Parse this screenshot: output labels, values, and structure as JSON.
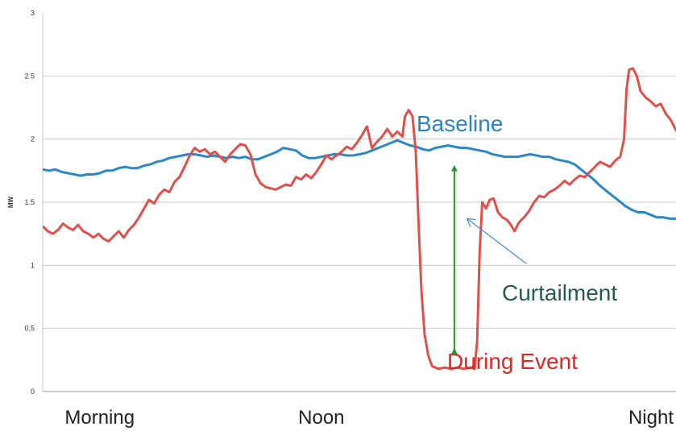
{
  "chart_data": {
    "type": "line",
    "ylabel": "MW",
    "ylim": [
      0,
      3
    ],
    "y_ticks": [
      0,
      0.5,
      1,
      1.5,
      2,
      2.5,
      3
    ],
    "grid": "horizontal",
    "xlim": [
      0,
      100
    ],
    "x_categories": [
      {
        "label": "Morning",
        "x": 9
      },
      {
        "label": "Noon",
        "x": 44
      },
      {
        "label": "Night",
        "x": 99
      }
    ],
    "series": [
      {
        "name": "Baseline",
        "color": "#2a88c8",
        "points": [
          [
            0,
            1.76
          ],
          [
            1,
            1.75
          ],
          [
            2,
            1.76
          ],
          [
            3,
            1.74
          ],
          [
            4,
            1.73
          ],
          [
            5,
            1.72
          ],
          [
            6,
            1.71
          ],
          [
            7,
            1.72
          ],
          [
            8,
            1.72
          ],
          [
            9,
            1.73
          ],
          [
            10,
            1.75
          ],
          [
            11,
            1.75
          ],
          [
            12,
            1.77
          ],
          [
            13,
            1.78
          ],
          [
            14,
            1.77
          ],
          [
            15,
            1.77
          ],
          [
            16,
            1.79
          ],
          [
            17,
            1.8
          ],
          [
            18,
            1.82
          ],
          [
            19,
            1.83
          ],
          [
            20,
            1.85
          ],
          [
            21,
            1.86
          ],
          [
            22,
            1.87
          ],
          [
            23,
            1.88
          ],
          [
            24,
            1.88
          ],
          [
            25,
            1.87
          ],
          [
            26,
            1.86
          ],
          [
            27,
            1.87
          ],
          [
            28,
            1.86
          ],
          [
            29,
            1.85
          ],
          [
            30,
            1.86
          ],
          [
            31,
            1.85
          ],
          [
            32,
            1.86
          ],
          [
            33,
            1.84
          ],
          [
            34,
            1.84
          ],
          [
            35,
            1.86
          ],
          [
            36,
            1.88
          ],
          [
            37,
            1.9
          ],
          [
            38,
            1.93
          ],
          [
            39,
            1.92
          ],
          [
            40,
            1.91
          ],
          [
            41,
            1.87
          ],
          [
            42,
            1.85
          ],
          [
            43,
            1.85
          ],
          [
            44,
            1.86
          ],
          [
            45,
            1.87
          ],
          [
            46,
            1.88
          ],
          [
            47,
            1.88
          ],
          [
            48,
            1.87
          ],
          [
            49,
            1.87
          ],
          [
            50,
            1.88
          ],
          [
            51,
            1.89
          ],
          [
            52,
            1.91
          ],
          [
            53,
            1.93
          ],
          [
            54,
            1.95
          ],
          [
            55,
            1.97
          ],
          [
            56,
            1.99
          ],
          [
            57,
            1.97
          ],
          [
            58,
            1.95
          ],
          [
            59,
            1.94
          ],
          [
            60,
            1.92
          ],
          [
            61,
            1.91
          ],
          [
            62,
            1.93
          ],
          [
            63,
            1.94
          ],
          [
            64,
            1.95
          ],
          [
            65,
            1.94
          ],
          [
            66,
            1.93
          ],
          [
            67,
            1.93
          ],
          [
            68,
            1.92
          ],
          [
            69,
            1.91
          ],
          [
            70,
            1.9
          ],
          [
            71,
            1.88
          ],
          [
            72,
            1.87
          ],
          [
            73,
            1.86
          ],
          [
            74,
            1.86
          ],
          [
            75,
            1.86
          ],
          [
            76,
            1.87
          ],
          [
            77,
            1.88
          ],
          [
            78,
            1.87
          ],
          [
            79,
            1.86
          ],
          [
            80,
            1.86
          ],
          [
            81,
            1.84
          ],
          [
            82,
            1.83
          ],
          [
            83,
            1.82
          ],
          [
            84,
            1.8
          ],
          [
            85,
            1.76
          ],
          [
            86,
            1.72
          ],
          [
            87,
            1.68
          ],
          [
            88,
            1.63
          ],
          [
            89,
            1.59
          ],
          [
            90,
            1.55
          ],
          [
            91,
            1.51
          ],
          [
            92,
            1.47
          ],
          [
            93,
            1.44
          ],
          [
            94,
            1.42
          ],
          [
            95,
            1.42
          ],
          [
            96,
            1.4
          ],
          [
            97,
            1.38
          ],
          [
            98,
            1.38
          ],
          [
            99,
            1.37
          ],
          [
            100,
            1.37
          ]
        ]
      },
      {
        "name": "During Event",
        "color": "#e0504a",
        "points": [
          [
            0,
            1.31
          ],
          [
            0.8,
            1.27
          ],
          [
            1.6,
            1.25
          ],
          [
            2.4,
            1.28
          ],
          [
            3.2,
            1.33
          ],
          [
            4,
            1.3
          ],
          [
            4.8,
            1.28
          ],
          [
            5.6,
            1.32
          ],
          [
            6.4,
            1.27
          ],
          [
            7.2,
            1.25
          ],
          [
            8,
            1.22
          ],
          [
            8.8,
            1.25
          ],
          [
            9.6,
            1.21
          ],
          [
            10.4,
            1.19
          ],
          [
            11.2,
            1.23
          ],
          [
            12,
            1.27
          ],
          [
            12.8,
            1.22
          ],
          [
            13.6,
            1.28
          ],
          [
            14.4,
            1.32
          ],
          [
            15.2,
            1.38
          ],
          [
            16,
            1.45
          ],
          [
            16.8,
            1.52
          ],
          [
            17.6,
            1.49
          ],
          [
            18.4,
            1.56
          ],
          [
            19.2,
            1.6
          ],
          [
            20,
            1.58
          ],
          [
            20.8,
            1.66
          ],
          [
            21.6,
            1.7
          ],
          [
            22.4,
            1.78
          ],
          [
            23.2,
            1.87
          ],
          [
            24,
            1.93
          ],
          [
            24.8,
            1.9
          ],
          [
            25.6,
            1.92
          ],
          [
            26.4,
            1.88
          ],
          [
            27.2,
            1.9
          ],
          [
            28,
            1.86
          ],
          [
            28.8,
            1.82
          ],
          [
            29.6,
            1.88
          ],
          [
            30.4,
            1.92
          ],
          [
            31.2,
            1.96
          ],
          [
            32,
            1.95
          ],
          [
            32.8,
            1.88
          ],
          [
            33.6,
            1.72
          ],
          [
            34.4,
            1.65
          ],
          [
            35.2,
            1.62
          ],
          [
            36,
            1.61
          ],
          [
            36.8,
            1.6
          ],
          [
            37.6,
            1.62
          ],
          [
            38.4,
            1.64
          ],
          [
            39.2,
            1.63
          ],
          [
            40,
            1.7
          ],
          [
            40.8,
            1.68
          ],
          [
            41.6,
            1.72
          ],
          [
            42.4,
            1.69
          ],
          [
            43.2,
            1.74
          ],
          [
            44,
            1.8
          ],
          [
            44.8,
            1.87
          ],
          [
            45.6,
            1.84
          ],
          [
            46.4,
            1.87
          ],
          [
            47.2,
            1.9
          ],
          [
            48,
            1.94
          ],
          [
            48.8,
            1.92
          ],
          [
            49.6,
            1.97
          ],
          [
            50.4,
            2.03
          ],
          [
            51.2,
            2.1
          ],
          [
            52,
            1.93
          ],
          [
            52.8,
            1.98
          ],
          [
            53.6,
            2.02
          ],
          [
            54.4,
            2.08
          ],
          [
            55.2,
            2.02
          ],
          [
            56,
            2.06
          ],
          [
            56.8,
            2.02
          ],
          [
            57.2,
            2.18
          ],
          [
            57.8,
            2.23
          ],
          [
            58.4,
            2.18
          ],
          [
            58.9,
            1.9
          ],
          [
            59.3,
            1.4
          ],
          [
            59.8,
            0.8
          ],
          [
            60.3,
            0.45
          ],
          [
            60.9,
            0.28
          ],
          [
            61.5,
            0.2
          ],
          [
            62.5,
            0.18
          ],
          [
            63.5,
            0.19
          ],
          [
            64.5,
            0.18
          ],
          [
            65.5,
            0.19
          ],
          [
            66.5,
            0.18
          ],
          [
            67.5,
            0.19
          ],
          [
            68.2,
            0.18
          ],
          [
            68.6,
            0.4
          ],
          [
            69,
            1.1
          ],
          [
            69.4,
            1.5
          ],
          [
            70,
            1.45
          ],
          [
            70.6,
            1.52
          ],
          [
            71.2,
            1.53
          ],
          [
            71.9,
            1.42
          ],
          [
            72.6,
            1.38
          ],
          [
            73.3,
            1.36
          ],
          [
            73.8,
            1.33
          ],
          [
            74.5,
            1.27
          ],
          [
            75.2,
            1.34
          ],
          [
            76,
            1.38
          ],
          [
            76.8,
            1.43
          ],
          [
            77.6,
            1.5
          ],
          [
            78.4,
            1.55
          ],
          [
            79.2,
            1.54
          ],
          [
            80,
            1.58
          ],
          [
            80.8,
            1.6
          ],
          [
            81.6,
            1.63
          ],
          [
            82.4,
            1.67
          ],
          [
            83.2,
            1.64
          ],
          [
            84,
            1.68
          ],
          [
            84.8,
            1.71
          ],
          [
            85.6,
            1.7
          ],
          [
            86.4,
            1.74
          ],
          [
            87.2,
            1.78
          ],
          [
            88,
            1.82
          ],
          [
            88.8,
            1.8
          ],
          [
            89.6,
            1.78
          ],
          [
            90.4,
            1.83
          ],
          [
            91.2,
            1.86
          ],
          [
            91.8,
            2.0
          ],
          [
            92.2,
            2.4
          ],
          [
            92.6,
            2.55
          ],
          [
            93.2,
            2.56
          ],
          [
            93.8,
            2.5
          ],
          [
            94.4,
            2.38
          ],
          [
            95.2,
            2.33
          ],
          [
            96,
            2.3
          ],
          [
            96.8,
            2.26
          ],
          [
            97.6,
            2.28
          ],
          [
            98.4,
            2.2
          ],
          [
            99.2,
            2.15
          ],
          [
            100,
            2.07
          ],
          [
            100.8,
            2.03
          ],
          [
            101.6,
            1.96
          ],
          [
            102,
            1.92
          ],
          [
            102.5,
            1.97
          ],
          [
            103,
            2.0
          ]
        ]
      }
    ],
    "annotations": [
      {
        "text": "Baseline",
        "color": "#2b82c4"
      },
      {
        "text": "Curtailment",
        "color": "#1f5e4a"
      },
      {
        "text": "During Event",
        "color": "#e5251f"
      }
    ],
    "curtailment_arrow": {
      "x": 65,
      "y_from": 0.32,
      "y_to": 1.77,
      "color": "#1f9a2a"
    },
    "pointer_arrow": {
      "from": [
        76,
        1.0
      ],
      "to": [
        67,
        1.37
      ],
      "color": "#4a8fe0"
    }
  }
}
